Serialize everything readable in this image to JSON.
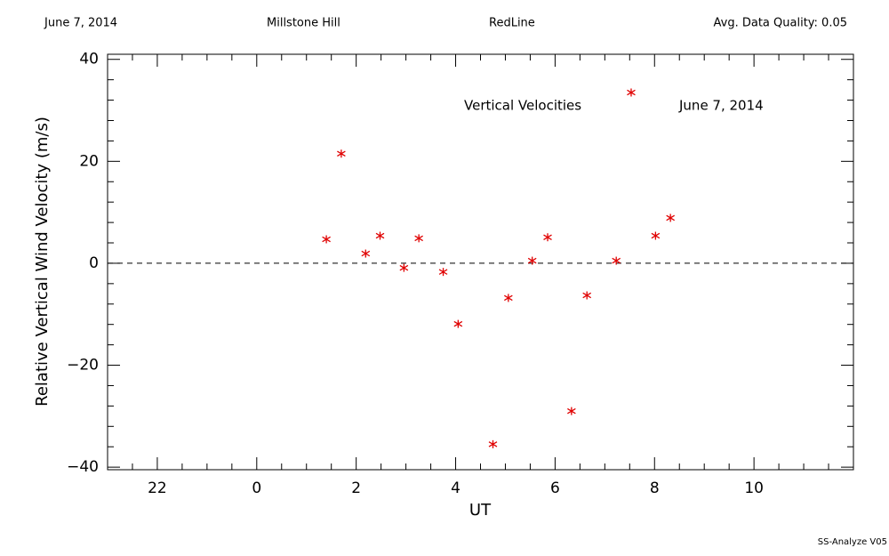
{
  "chart_data": {
    "type": "scatter",
    "header": [
      "June 7, 2014",
      "Millstone Hill",
      "RedLine",
      "Avg. Data Quality: 0.05"
    ],
    "annotations": [
      "Vertical Velocities",
      "June 7, 2014"
    ],
    "x_label": "UT",
    "y_label": "Relative Vertical Wind Velocity (m/s)",
    "footer": "SS-Analyze V05",
    "xlim": [
      -3,
      12
    ],
    "xticks": [
      {
        "value": -2,
        "label": "22"
      },
      0,
      2,
      4,
      6,
      8,
      10
    ],
    "ylim": [
      -40.5,
      41
    ],
    "yticks": [
      {
        "value": -40,
        "label": "−40"
      },
      {
        "value": -20,
        "label": "−20"
      },
      0,
      20,
      40
    ],
    "reference_line": 0,
    "series": [
      {
        "name": "Vertical Velocities",
        "color": "#e00000",
        "x": [
          1.4,
          1.7,
          2.19,
          2.48,
          2.96,
          3.26,
          3.75,
          4.05,
          4.75,
          5.06,
          5.54,
          5.85,
          6.33,
          6.64,
          7.23,
          7.53,
          8.02,
          8.32
        ],
        "values": [
          4.7,
          21.5,
          1.9,
          5.4,
          -0.9,
          4.9,
          -1.7,
          -11.9,
          -35.5,
          -6.8,
          0.5,
          5.1,
          -29.0,
          -6.3,
          0.5,
          33.5,
          5.4,
          8.9
        ]
      }
    ]
  }
}
